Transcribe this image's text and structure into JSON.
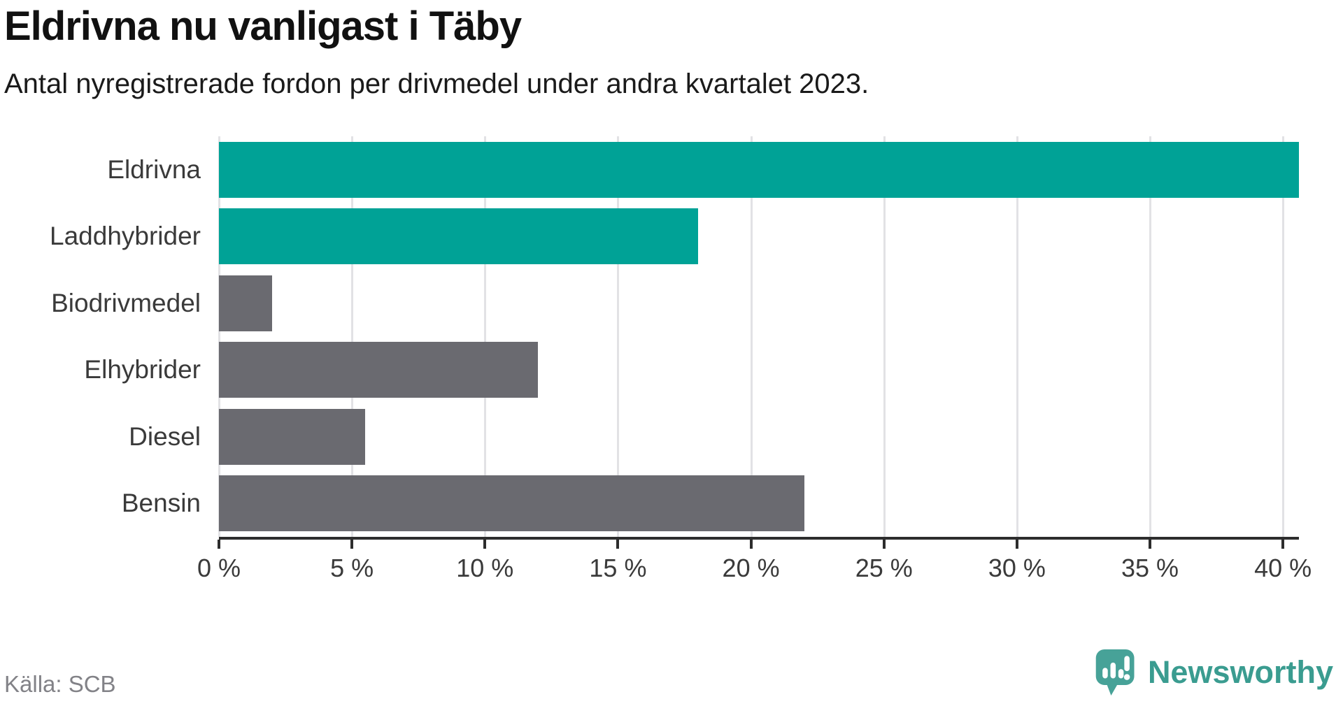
{
  "title": "Eldrivna nu vanligast i Täby",
  "subtitle": "Antal nyregistrerade fordon per drivmedel under andra kvartalet 2023.",
  "source": "Källa: SCB",
  "brand": {
    "name": "Newsworthy"
  },
  "colors": {
    "highlight_bar": "#00a296",
    "default_bar": "#6a6a70",
    "brand_teal": "#47a298",
    "grid": "#e2e2e5",
    "axis": "#2d2d2d"
  },
  "chart_data": {
    "type": "bar",
    "orientation": "horizontal",
    "title": "Eldrivna nu vanligast i Täby",
    "subtitle": "Antal nyregistrerade fordon per drivmedel under andra kvartalet 2023.",
    "categories": [
      "Eldrivna",
      "Laddhybrider",
      "Biodrivmedel",
      "Elhybrider",
      "Diesel",
      "Bensin"
    ],
    "values": [
      40.6,
      18,
      2,
      12,
      5.5,
      22
    ],
    "unit": "%",
    "highlighted_categories": [
      "Eldrivna",
      "Laddhybrider"
    ],
    "xlim": [
      0,
      40.6
    ],
    "x_tick_values": [
      0,
      5,
      10,
      15,
      20,
      25,
      30,
      35,
      40
    ],
    "x_tick_labels": [
      "0 %",
      "5 %",
      "10 %",
      "15 %",
      "20 %",
      "25 %",
      "30 %",
      "35 %",
      "40 %"
    ],
    "grid": true,
    "legend": false
  }
}
